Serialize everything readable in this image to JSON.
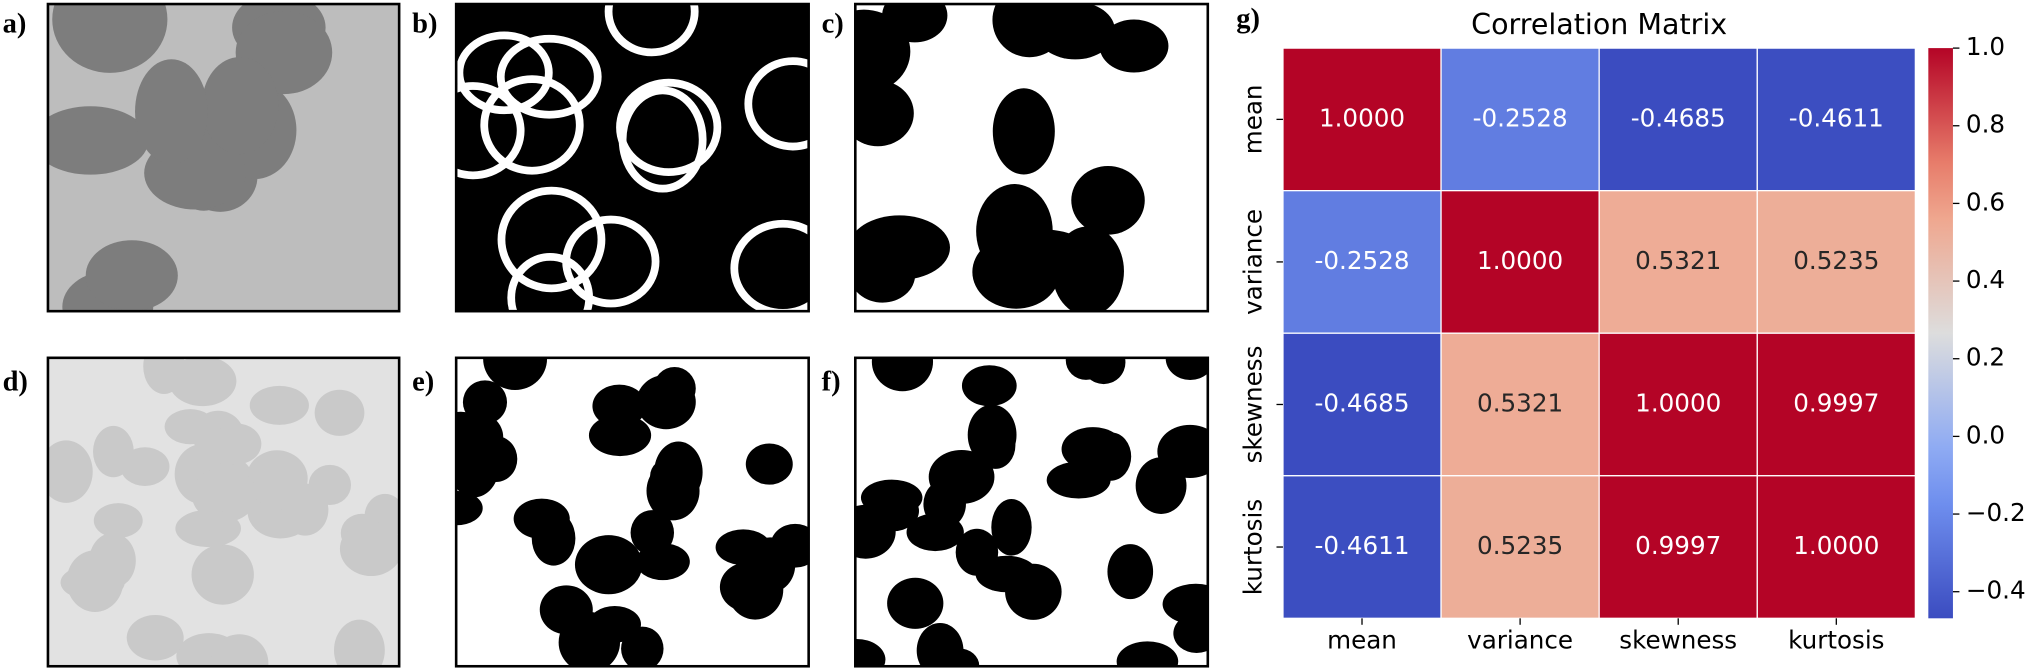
{
  "panels": {
    "labels": [
      "a)",
      "b)",
      "c)",
      "d)",
      "e)",
      "f)",
      "g)"
    ]
  },
  "chart_data": {
    "type": "heatmap",
    "title": "Correlation Matrix",
    "categories": [
      "mean",
      "variance",
      "skewness",
      "kurtosis"
    ],
    "values": [
      [
        1.0,
        -0.2528,
        -0.4685,
        -0.4611
      ],
      [
        -0.2528,
        1.0,
        0.5321,
        0.5235
      ],
      [
        -0.4685,
        0.5321,
        1.0,
        0.9997
      ],
      [
        -0.4611,
        0.5235,
        0.9997,
        1.0
      ]
    ],
    "value_labels": [
      [
        "1.0000",
        "-0.2528",
        "-0.4685",
        "-0.4611"
      ],
      [
        "-0.2528",
        "1.0000",
        "0.5321",
        "0.5235"
      ],
      [
        "-0.4685",
        "0.5321",
        "1.0000",
        "0.9997"
      ],
      [
        "-0.4611",
        "0.5235",
        "0.9997",
        "1.0000"
      ]
    ],
    "colormap": "coolwarm",
    "zlim": [
      -0.4685,
      1.0
    ],
    "zticks": [
      {
        "value": 1.0,
        "label": "1.0"
      },
      0.8,
      0.6,
      0.4,
      0.2,
      {
        "value": 0.0,
        "label": "0.0"
      },
      {
        "value": -0.2,
        "label": "−0.2"
      },
      {
        "value": -0.4,
        "label": "−0.4"
      }
    ]
  }
}
